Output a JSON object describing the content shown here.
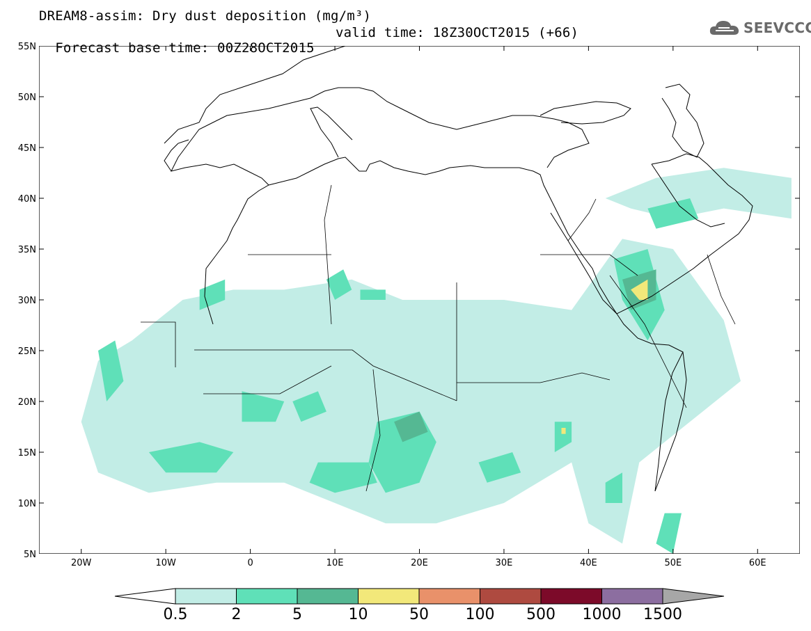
{
  "title": {
    "line1": "DREAM8-assim: Dry dust deposition (mg/m³)",
    "line2": "Forecast base time: 00Z28OCT2015",
    "valid": "valid time: 18Z30OCT2015 (+66)"
  },
  "logo": {
    "text": "SEEVCCC",
    "icon": "cloud-logo-icon"
  },
  "map": {
    "lon_range": [
      -25,
      65
    ],
    "lat_range": [
      5,
      55
    ],
    "lat_ticks": [
      {
        "v": 55,
        "label": "55N"
      },
      {
        "v": 50,
        "label": "50N"
      },
      {
        "v": 45,
        "label": "45N"
      },
      {
        "v": 40,
        "label": "40N"
      },
      {
        "v": 35,
        "label": "35N"
      },
      {
        "v": 30,
        "label": "30N"
      },
      {
        "v": 25,
        "label": "25N"
      },
      {
        "v": 20,
        "label": "20N"
      },
      {
        "v": 15,
        "label": "15N"
      },
      {
        "v": 10,
        "label": "10N"
      },
      {
        "v": 5,
        "label": "5N"
      }
    ],
    "lon_ticks": [
      {
        "v": -20,
        "label": "20W"
      },
      {
        "v": -10,
        "label": "10W"
      },
      {
        "v": 0,
        "label": "0"
      },
      {
        "v": 10,
        "label": "10E"
      },
      {
        "v": 20,
        "label": "20E"
      },
      {
        "v": 30,
        "label": "30E"
      },
      {
        "v": 40,
        "label": "40E"
      },
      {
        "v": 50,
        "label": "50E"
      },
      {
        "v": 60,
        "label": "60E"
      }
    ],
    "dust_regions": [
      {
        "level": 1,
        "pts": [
          [
            -18,
            24
          ],
          [
            -14,
            26
          ],
          [
            -8,
            30
          ],
          [
            -2,
            31
          ],
          [
            4,
            31
          ],
          [
            12,
            32
          ],
          [
            18,
            30
          ],
          [
            24,
            30
          ],
          [
            30,
            30
          ],
          [
            38,
            29
          ],
          [
            44,
            36
          ],
          [
            50,
            35
          ],
          [
            56,
            28
          ],
          [
            58,
            22
          ],
          [
            52,
            18
          ],
          [
            46,
            14
          ],
          [
            44,
            6
          ],
          [
            40,
            8
          ],
          [
            38,
            14
          ],
          [
            30,
            10
          ],
          [
            22,
            8
          ],
          [
            16,
            8
          ],
          [
            10,
            10
          ],
          [
            4,
            12
          ],
          [
            -4,
            12
          ],
          [
            -12,
            11
          ],
          [
            -18,
            13
          ],
          [
            -20,
            18
          ]
        ]
      },
      {
        "level": 1,
        "pts": [
          [
            42,
            40
          ],
          [
            48,
            42
          ],
          [
            56,
            43
          ],
          [
            64,
            42
          ],
          [
            64,
            38
          ],
          [
            56,
            39
          ],
          [
            50,
            38
          ],
          [
            45,
            39
          ]
        ]
      },
      {
        "level": 2,
        "pts": [
          [
            -18,
            25
          ],
          [
            -16,
            26
          ],
          [
            -15,
            22
          ],
          [
            -17,
            20
          ]
        ]
      },
      {
        "level": 2,
        "pts": [
          [
            -12,
            15
          ],
          [
            -6,
            16
          ],
          [
            -2,
            15
          ],
          [
            -4,
            13
          ],
          [
            -10,
            13
          ]
        ]
      },
      {
        "level": 2,
        "pts": [
          [
            -1,
            21
          ],
          [
            4,
            20
          ],
          [
            3,
            18
          ],
          [
            -1,
            18
          ]
        ]
      },
      {
        "level": 2,
        "pts": [
          [
            5,
            20
          ],
          [
            8,
            21
          ],
          [
            9,
            19
          ],
          [
            6,
            18
          ]
        ]
      },
      {
        "level": 2,
        "pts": [
          [
            15,
            18
          ],
          [
            20,
            19
          ],
          [
            22,
            16
          ],
          [
            20,
            12
          ],
          [
            16,
            11
          ],
          [
            14,
            14
          ]
        ]
      },
      {
        "level": 2,
        "pts": [
          [
            8,
            14
          ],
          [
            14,
            14
          ],
          [
            15,
            12
          ],
          [
            10,
            11
          ],
          [
            7,
            12
          ]
        ]
      },
      {
        "level": 2,
        "pts": [
          [
            27,
            14
          ],
          [
            31,
            15
          ],
          [
            32,
            13
          ],
          [
            28,
            12
          ]
        ]
      },
      {
        "level": 2,
        "pts": [
          [
            9,
            32
          ],
          [
            11,
            33
          ],
          [
            12,
            31
          ],
          [
            10,
            30
          ]
        ]
      },
      {
        "level": 2,
        "pts": [
          [
            13,
            31
          ],
          [
            16,
            31
          ],
          [
            16,
            30
          ],
          [
            13,
            30
          ]
        ]
      },
      {
        "level": 2,
        "pts": [
          [
            -6,
            31
          ],
          [
            -3,
            32
          ],
          [
            -3,
            30
          ],
          [
            -6,
            29
          ]
        ]
      },
      {
        "level": 2,
        "pts": [
          [
            43,
            34
          ],
          [
            47,
            35
          ],
          [
            49,
            29
          ],
          [
            47,
            26
          ],
          [
            44,
            30
          ]
        ]
      },
      {
        "level": 2,
        "pts": [
          [
            36,
            18
          ],
          [
            38,
            18
          ],
          [
            38,
            16
          ],
          [
            36,
            15
          ]
        ]
      },
      {
        "level": 2,
        "pts": [
          [
            47,
            39
          ],
          [
            52,
            40
          ],
          [
            53,
            38
          ],
          [
            48,
            37
          ]
        ]
      },
      {
        "level": 2,
        "pts": [
          [
            42,
            12
          ],
          [
            44,
            13
          ],
          [
            44,
            10
          ],
          [
            42,
            10
          ]
        ]
      },
      {
        "level": 2,
        "pts": [
          [
            49,
            9
          ],
          [
            51,
            9
          ],
          [
            50,
            5
          ],
          [
            48,
            6
          ]
        ]
      },
      {
        "level": 3,
        "pts": [
          [
            17,
            18
          ],
          [
            20,
            19
          ],
          [
            21,
            17
          ],
          [
            18,
            16
          ]
        ]
      },
      {
        "level": 3,
        "pts": [
          [
            44,
            32
          ],
          [
            48,
            33
          ],
          [
            48,
            30
          ],
          [
            45,
            29
          ]
        ]
      },
      {
        "level": 4,
        "pts": [
          [
            45,
            31
          ],
          [
            47,
            32
          ],
          [
            47,
            30
          ],
          [
            46,
            30
          ]
        ]
      },
      {
        "level": 4,
        "pts": [
          [
            36.8,
            17.4
          ],
          [
            37.3,
            17.4
          ],
          [
            37.3,
            16.8
          ],
          [
            36.8,
            16.8
          ]
        ]
      }
    ]
  },
  "colorbar": {
    "colors": [
      "#c2ede6",
      "#5fe0b8",
      "#55b893",
      "#f2e87a",
      "#e9916a",
      "#ae4a40",
      "#7c0a29",
      "#8c6ea0",
      "#a7a7a7"
    ],
    "labels": [
      "0.5",
      "2",
      "5",
      "10",
      "50",
      "100",
      "500",
      "1000",
      "1500"
    ]
  }
}
